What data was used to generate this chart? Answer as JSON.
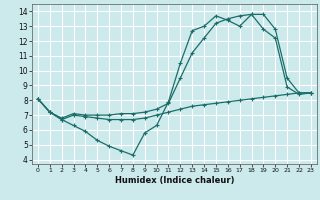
{
  "xlabel": "Humidex (Indice chaleur)",
  "bg_color": "#cce9ec",
  "grid_color": "#ffffff",
  "line_color": "#1a6e6a",
  "line1_x": [
    0,
    1,
    2,
    3,
    4,
    5,
    6,
    7,
    8,
    9,
    10,
    11,
    12,
    13,
    14,
    15,
    16,
    17,
    18,
    19,
    20,
    21,
    22,
    23
  ],
  "line1_y": [
    8.1,
    7.2,
    6.7,
    7.0,
    6.9,
    6.8,
    6.7,
    6.7,
    6.7,
    6.8,
    7.0,
    7.2,
    7.4,
    7.6,
    7.7,
    7.8,
    7.9,
    8.0,
    8.1,
    8.2,
    8.3,
    8.4,
    8.5,
    8.5
  ],
  "line2_x": [
    0,
    1,
    2,
    3,
    4,
    5,
    6,
    7,
    8,
    9,
    10,
    11,
    12,
    13,
    14,
    15,
    16,
    17,
    18,
    19,
    20,
    21,
    22,
    23
  ],
  "line2_y": [
    8.1,
    7.2,
    6.7,
    6.3,
    5.9,
    5.3,
    4.9,
    4.6,
    4.3,
    5.8,
    6.3,
    7.9,
    10.5,
    12.7,
    13.0,
    13.7,
    13.4,
    13.0,
    13.8,
    12.8,
    12.2,
    8.9,
    8.4,
    8.5
  ],
  "line3_x": [
    0,
    1,
    2,
    3,
    4,
    5,
    6,
    7,
    8,
    9,
    10,
    11,
    12,
    13,
    14,
    15,
    16,
    17,
    18,
    19,
    20,
    21,
    22,
    23
  ],
  "line3_y": [
    8.1,
    7.2,
    6.8,
    7.1,
    7.0,
    7.0,
    7.0,
    7.1,
    7.1,
    7.2,
    7.4,
    7.8,
    9.5,
    11.2,
    12.2,
    13.2,
    13.5,
    13.7,
    13.8,
    13.8,
    12.8,
    9.5,
    8.5,
    8.5
  ],
  "ylim": [
    3.7,
    14.5
  ],
  "xlim": [
    -0.5,
    23.5
  ],
  "yticks": [
    4,
    5,
    6,
    7,
    8,
    9,
    10,
    11,
    12,
    13,
    14
  ],
  "xticks": [
    0,
    1,
    2,
    3,
    4,
    5,
    6,
    7,
    8,
    9,
    10,
    11,
    12,
    13,
    14,
    15,
    16,
    17,
    18,
    19,
    20,
    21,
    22,
    23
  ]
}
